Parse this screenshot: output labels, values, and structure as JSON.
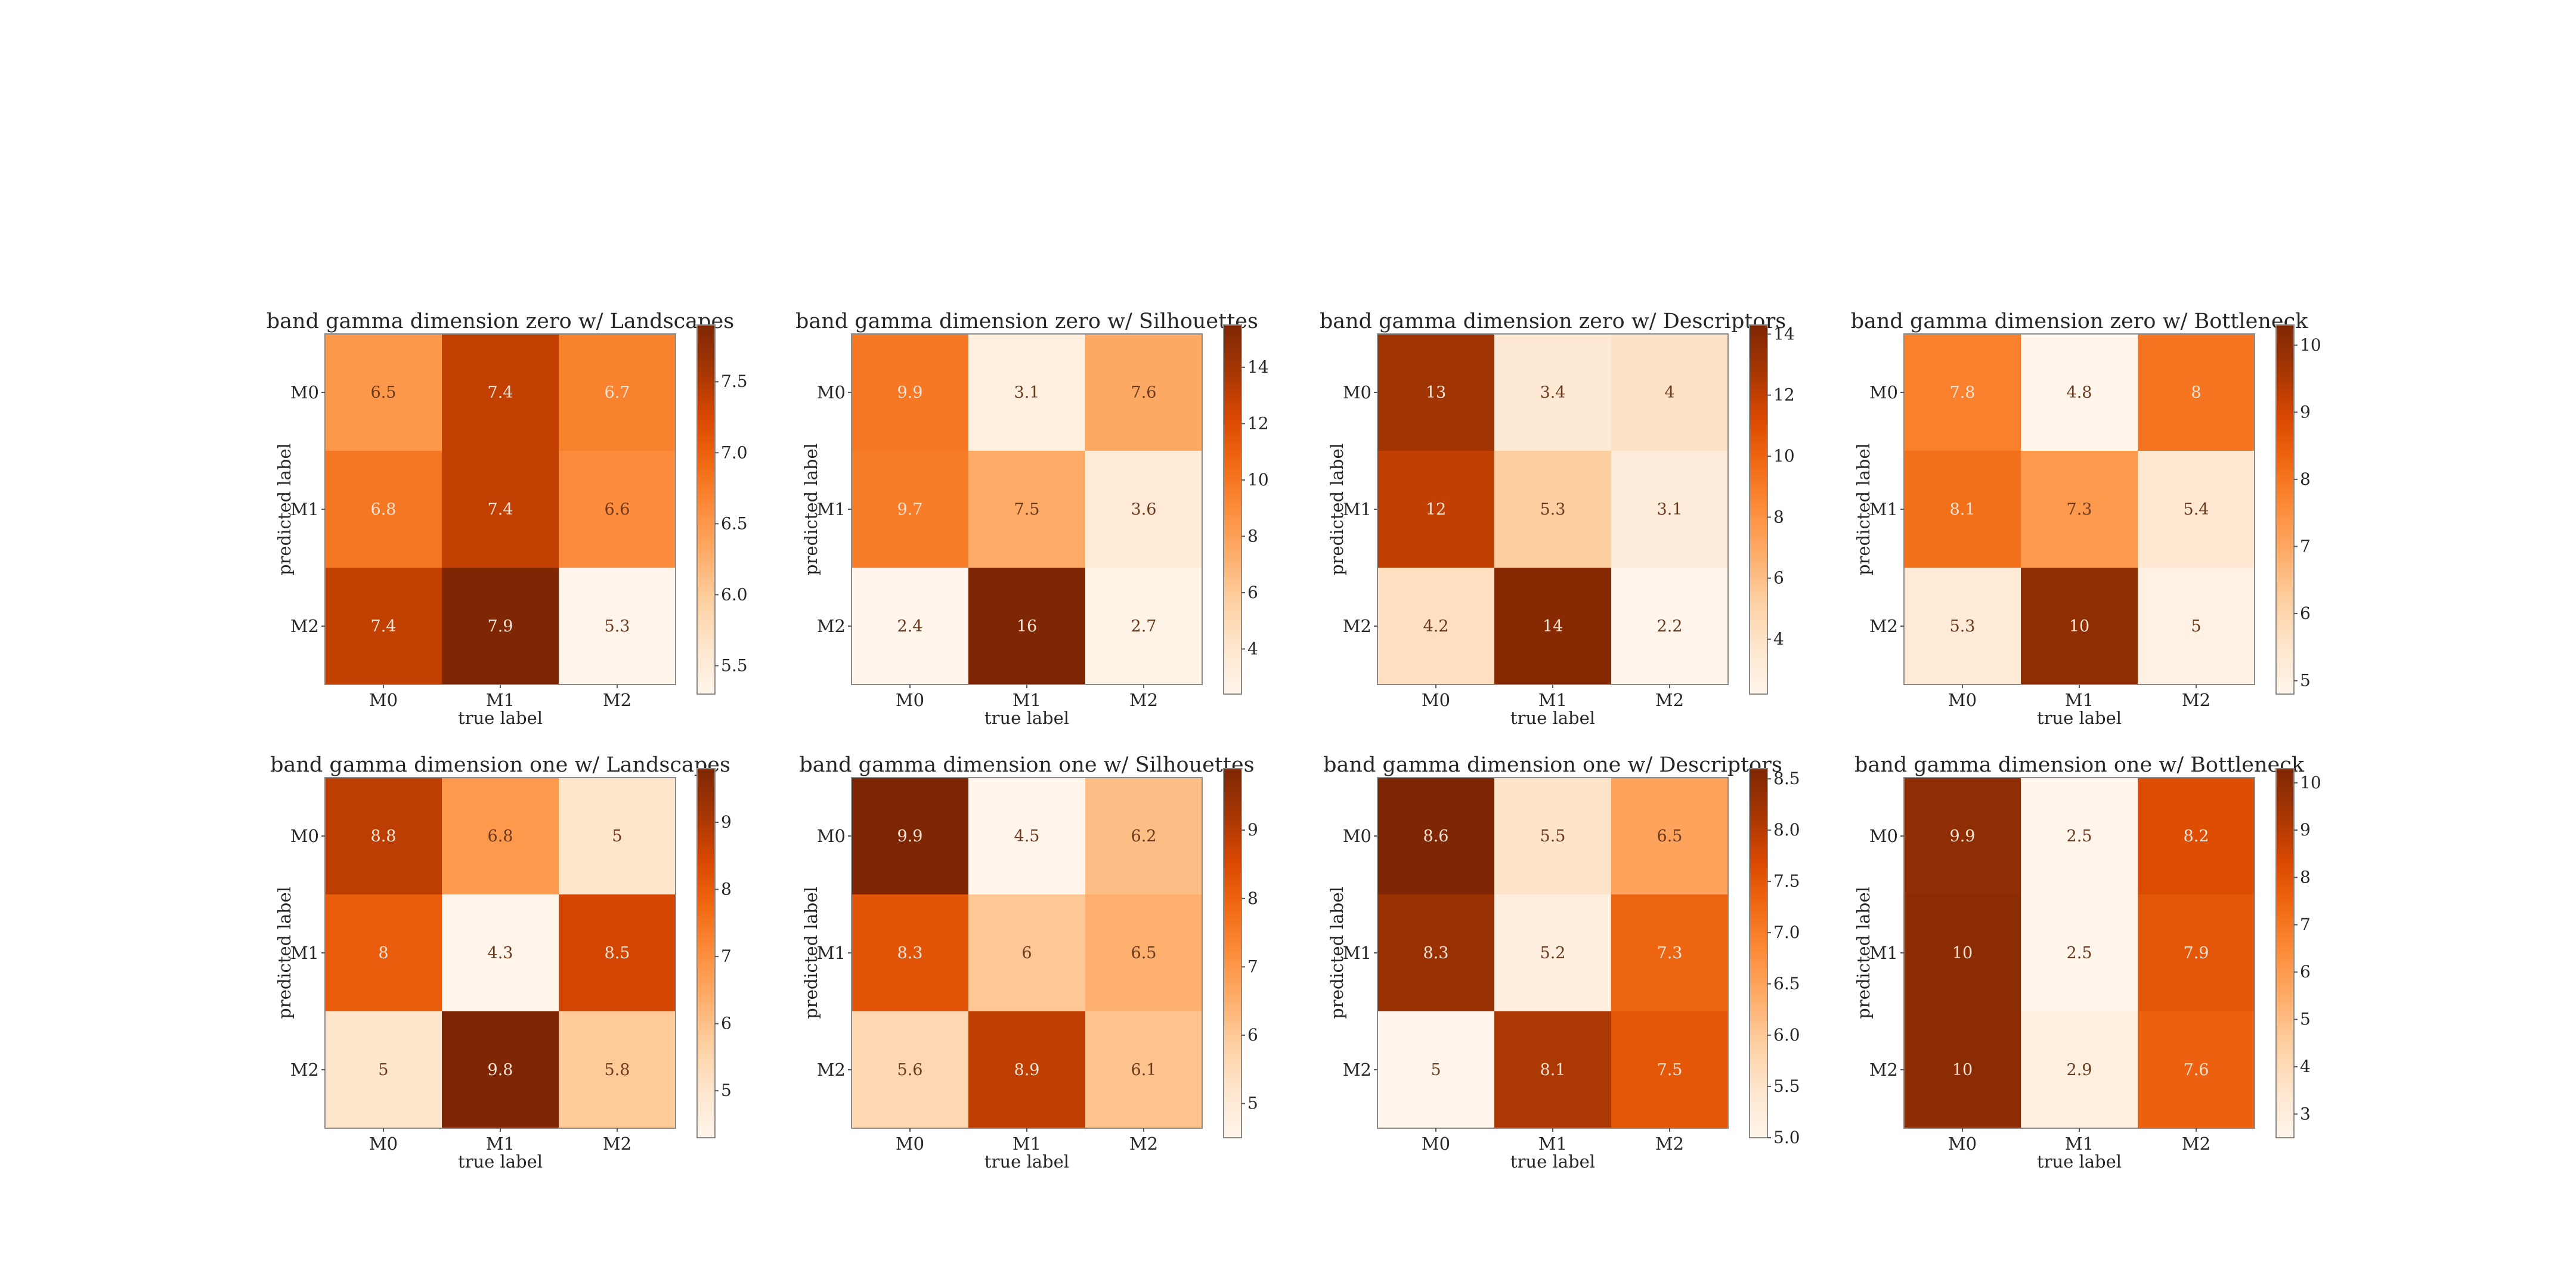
{
  "chart_data": [
    {
      "type": "heatmap",
      "title": "band gamma dimension zero w/ Landscapes",
      "xlabel": "true label",
      "ylabel": "predicted label",
      "x_categories": [
        "M0",
        "M1",
        "M2"
      ],
      "y_categories": [
        "M0",
        "M1",
        "M2"
      ],
      "values": [
        [
          6.5,
          7.4,
          6.7
        ],
        [
          6.8,
          7.4,
          6.6
        ],
        [
          7.4,
          7.9,
          5.3
        ]
      ],
      "cell_labels": [
        [
          "6.5",
          "7.4",
          "6.7"
        ],
        [
          "6.8",
          "7.4",
          "6.6"
        ],
        [
          "7.4",
          "7.9",
          "5.3"
        ]
      ],
      "colormap": "Oranges",
      "colorbar": {
        "min": 5.3,
        "max": 7.9,
        "ticks": [
          5.5,
          6.0,
          6.5,
          7.0,
          7.5
        ],
        "tick_labels": [
          "5.5",
          "6.0",
          "6.5",
          "7.0",
          "7.5"
        ]
      }
    },
    {
      "type": "heatmap",
      "title": "band gamma dimension zero w/ Silhouettes",
      "xlabel": "true label",
      "ylabel": "predicted label",
      "x_categories": [
        "M0",
        "M1",
        "M2"
      ],
      "y_categories": [
        "M0",
        "M1",
        "M2"
      ],
      "values": [
        [
          9.9,
          3.1,
          7.6
        ],
        [
          9.7,
          7.5,
          3.6
        ],
        [
          2.4,
          16,
          2.7
        ]
      ],
      "cell_labels": [
        [
          "9.9",
          "3.1",
          "7.6"
        ],
        [
          "9.7",
          "7.5",
          "3.6"
        ],
        [
          "2.4",
          "16",
          "2.7"
        ]
      ],
      "colormap": "Oranges",
      "colorbar": {
        "min": 2.4,
        "max": 15.5,
        "ticks": [
          4,
          6,
          8,
          10,
          12,
          14
        ],
        "tick_labels": [
          "4",
          "6",
          "8",
          "10",
          "12",
          "14"
        ]
      }
    },
    {
      "type": "heatmap",
      "title": "band gamma dimension zero w/ Descriptors",
      "xlabel": "true label",
      "ylabel": "predicted label",
      "x_categories": [
        "M0",
        "M1",
        "M2"
      ],
      "y_categories": [
        "M0",
        "M1",
        "M2"
      ],
      "values": [
        [
          13,
          3.4,
          4
        ],
        [
          12,
          5.3,
          3.1
        ],
        [
          4.2,
          14,
          2.2
        ]
      ],
      "cell_labels": [
        [
          "13",
          "3.4",
          "4"
        ],
        [
          "12",
          "5.3",
          "3.1"
        ],
        [
          "4.2",
          "14",
          "2.2"
        ]
      ],
      "colormap": "Oranges",
      "colorbar": {
        "min": 2.2,
        "max": 14.3,
        "ticks": [
          4,
          6,
          8,
          10,
          12,
          14
        ],
        "tick_labels": [
          "4",
          "6",
          "8",
          "10",
          "12",
          "14"
        ]
      }
    },
    {
      "type": "heatmap",
      "title": "band gamma dimension zero w/ Bottleneck",
      "xlabel": "true label",
      "ylabel": "predicted label",
      "x_categories": [
        "M0",
        "M1",
        "M2"
      ],
      "y_categories": [
        "M0",
        "M1",
        "M2"
      ],
      "values": [
        [
          7.8,
          4.8,
          8
        ],
        [
          8.1,
          7.3,
          5.4
        ],
        [
          5.3,
          10,
          5
        ]
      ],
      "cell_labels": [
        [
          "7.8",
          "4.8",
          "8"
        ],
        [
          "8.1",
          "7.3",
          "5.4"
        ],
        [
          "5.3",
          "10",
          "5"
        ]
      ],
      "colormap": "Oranges",
      "colorbar": {
        "min": 4.8,
        "max": 10.3,
        "ticks": [
          5,
          6,
          7,
          8,
          9,
          10
        ],
        "tick_labels": [
          "5",
          "6",
          "7",
          "8",
          "9",
          "10"
        ]
      }
    },
    {
      "type": "heatmap",
      "title": "band gamma dimension one w/ Landscapes",
      "xlabel": "true label",
      "ylabel": "predicted label",
      "x_categories": [
        "M0",
        "M1",
        "M2"
      ],
      "y_categories": [
        "M0",
        "M1",
        "M2"
      ],
      "values": [
        [
          8.8,
          6.8,
          5
        ],
        [
          8,
          4.3,
          8.5
        ],
        [
          5,
          9.8,
          5.8
        ]
      ],
      "cell_labels": [
        [
          "8.8",
          "6.8",
          "5"
        ],
        [
          "8",
          "4.3",
          "8.5"
        ],
        [
          "5",
          "9.8",
          "5.8"
        ]
      ],
      "colormap": "Oranges",
      "colorbar": {
        "min": 4.3,
        "max": 9.8,
        "ticks": [
          5,
          6,
          7,
          8,
          9
        ],
        "tick_labels": [
          "5",
          "6",
          "7",
          "8",
          "9"
        ]
      }
    },
    {
      "type": "heatmap",
      "title": "band gamma dimension one w/ Silhouettes",
      "xlabel": "true label",
      "ylabel": "predicted label",
      "x_categories": [
        "M0",
        "M1",
        "M2"
      ],
      "y_categories": [
        "M0",
        "M1",
        "M2"
      ],
      "values": [
        [
          9.9,
          4.5,
          6.2
        ],
        [
          8.3,
          6,
          6.5
        ],
        [
          5.6,
          8.9,
          6.1
        ]
      ],
      "cell_labels": [
        [
          "9.9",
          "4.5",
          "6.2"
        ],
        [
          "8.3",
          "6",
          "6.5"
        ],
        [
          "5.6",
          "8.9",
          "6.1"
        ]
      ],
      "colormap": "Oranges",
      "colorbar": {
        "min": 4.5,
        "max": 9.9,
        "ticks": [
          5,
          6,
          7,
          8,
          9
        ],
        "tick_labels": [
          "5",
          "6",
          "7",
          "8",
          "9"
        ]
      }
    },
    {
      "type": "heatmap",
      "title": "band gamma dimension one w/ Descriptors",
      "xlabel": "true label",
      "ylabel": "predicted label",
      "x_categories": [
        "M0",
        "M1",
        "M2"
      ],
      "y_categories": [
        "M0",
        "M1",
        "M2"
      ],
      "values": [
        [
          8.6,
          5.5,
          6.5
        ],
        [
          8.3,
          5.2,
          7.3
        ],
        [
          5,
          8.1,
          7.5
        ]
      ],
      "cell_labels": [
        [
          "8.6",
          "5.5",
          "6.5"
        ],
        [
          "8.3",
          "5.2",
          "7.3"
        ],
        [
          "5",
          "8.1",
          "7.5"
        ]
      ],
      "colormap": "Oranges",
      "colorbar": {
        "min": 5.0,
        "max": 8.6,
        "ticks": [
          5.0,
          5.5,
          6.0,
          6.5,
          7.0,
          7.5,
          8.0,
          8.5
        ],
        "tick_labels": [
          "5.0",
          "5.5",
          "6.0",
          "6.5",
          "7.0",
          "7.5",
          "8.0",
          "8.5"
        ]
      }
    },
    {
      "type": "heatmap",
      "title": "band gamma dimension one w/ Bottleneck",
      "xlabel": "true label",
      "ylabel": "predicted label",
      "x_categories": [
        "M0",
        "M1",
        "M2"
      ],
      "y_categories": [
        "M0",
        "M1",
        "M2"
      ],
      "values": [
        [
          9.9,
          2.5,
          8.2
        ],
        [
          10,
          2.5,
          7.9
        ],
        [
          10,
          2.9,
          7.6
        ]
      ],
      "cell_labels": [
        [
          "9.9",
          "2.5",
          "8.2"
        ],
        [
          "10",
          "2.5",
          "7.9"
        ],
        [
          "10",
          "2.9",
          "7.6"
        ]
      ],
      "colormap": "Oranges",
      "colorbar": {
        "min": 2.5,
        "max": 10.3,
        "ticks": [
          3,
          4,
          5,
          6,
          7,
          8,
          9,
          10
        ],
        "tick_labels": [
          "3",
          "4",
          "5",
          "6",
          "7",
          "8",
          "9",
          "10"
        ]
      }
    }
  ]
}
